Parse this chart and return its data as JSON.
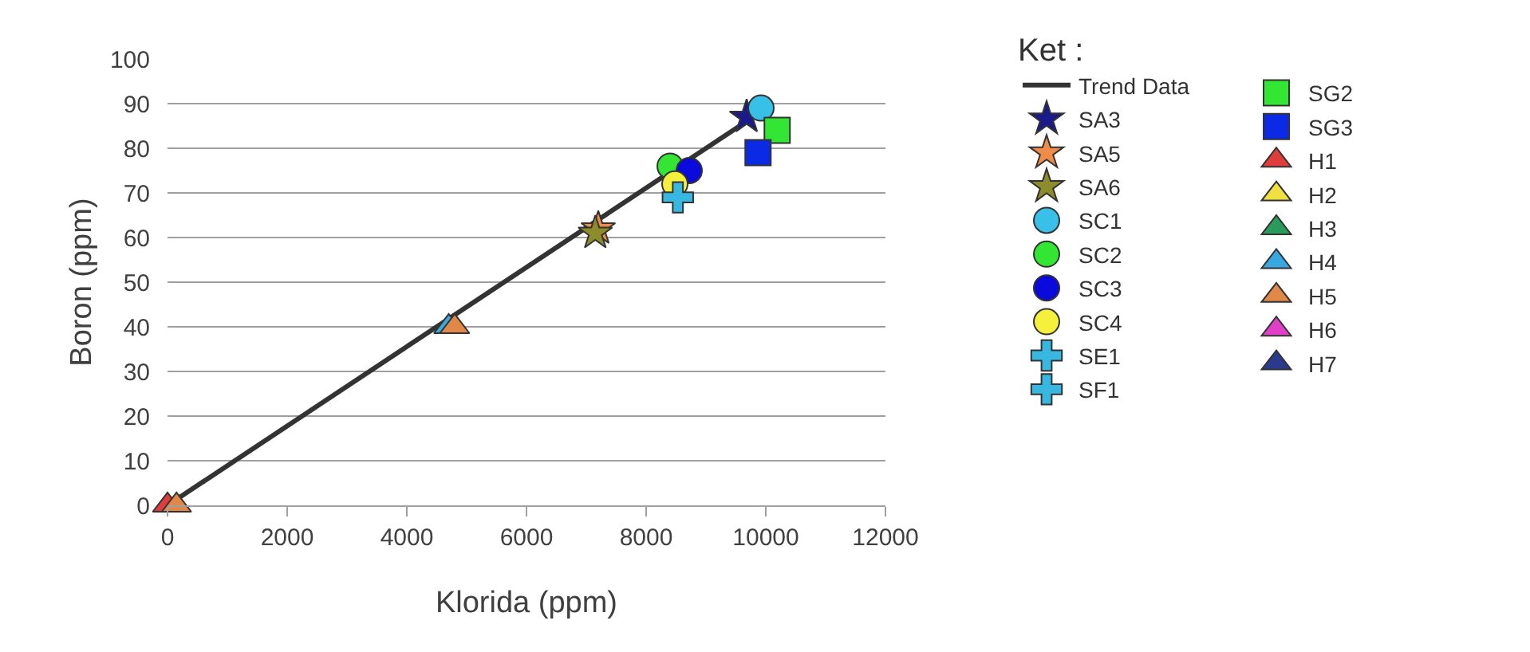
{
  "chart_data": {
    "type": "scatter",
    "xlabel": "Klorida (ppm)",
    "ylabel": "Boron (ppm)",
    "legend_title": "Ket :",
    "legend": "right",
    "grid": "y",
    "xlim": [
      0,
      12000
    ],
    "xticks": [
      0,
      2000,
      4000,
      6000,
      8000,
      10000,
      12000
    ],
    "ylim": [
      0,
      100
    ],
    "yticks": [
      0,
      10,
      20,
      30,
      40,
      50,
      60,
      70,
      80,
      90,
      100
    ],
    "series": [
      {
        "name": "Trend Data",
        "type": "line",
        "color": "#333333",
        "marker": "none",
        "line_style": "solid",
        "x": [
          0,
          9900
        ],
        "values": [
          0,
          88
        ]
      },
      {
        "name": "SA3",
        "color": "#1a1a8c",
        "marker": "star",
        "x": [
          9680
        ],
        "values": [
          87
        ]
      },
      {
        "name": "SA5",
        "color": "#f08c4a",
        "marker": "star",
        "x": [
          7200
        ],
        "values": [
          62
        ]
      },
      {
        "name": "SA6",
        "color": "#8c8c2a",
        "marker": "star",
        "x": [
          7150
        ],
        "values": [
          61
        ]
      },
      {
        "name": "SC1",
        "color": "#38c0e8",
        "marker": "circle",
        "x": [
          9920
        ],
        "values": [
          89
        ]
      },
      {
        "name": "SC2",
        "color": "#33e633",
        "marker": "circle",
        "x": [
          8400
        ],
        "values": [
          76
        ]
      },
      {
        "name": "SC3",
        "color": "#0a0adc",
        "marker": "circle",
        "x": [
          8720
        ],
        "values": [
          75
        ]
      },
      {
        "name": "SC4",
        "color": "#f5f03c",
        "marker": "circle",
        "x": [
          8480
        ],
        "values": [
          72
        ]
      },
      {
        "name": "SE1",
        "color": "#38b8e0",
        "marker": "cross",
        "x": [
          8530
        ],
        "values": [
          69
        ]
      },
      {
        "name": "SF1",
        "color": "#38b8e0",
        "marker": "cross",
        "x": [
          null
        ],
        "values": [
          null
        ]
      },
      {
        "name": "SG2",
        "color": "#33e633",
        "marker": "square",
        "x": [
          10190
        ],
        "values": [
          84
        ]
      },
      {
        "name": "SG3",
        "color": "#0a2ae6",
        "marker": "square",
        "x": [
          9870
        ],
        "values": [
          79
        ]
      },
      {
        "name": "H1",
        "color": "#e03c3c",
        "marker": "triangle",
        "x": [
          0
        ],
        "values": [
          0
        ]
      },
      {
        "name": "H2",
        "color": "#f0e040",
        "marker": "triangle",
        "x": [
          null
        ],
        "values": [
          null
        ]
      },
      {
        "name": "H3",
        "color": "#2a9a5a",
        "marker": "triangle",
        "x": [
          null
        ],
        "values": [
          null
        ]
      },
      {
        "name": "H4",
        "color": "#38a8e0",
        "marker": "triangle",
        "x": [
          4700
        ],
        "values": [
          40
        ]
      },
      {
        "name": "H5",
        "color": "#e08848",
        "marker": "triangle",
        "x": [
          150,
          4800
        ],
        "values": [
          0,
          40
        ]
      },
      {
        "name": "H6",
        "color": "#e040c8",
        "marker": "triangle",
        "x": [
          null
        ],
        "values": [
          null
        ]
      },
      {
        "name": "H7",
        "color": "#2a3a8c",
        "marker": "triangle",
        "x": [
          null
        ],
        "values": [
          null
        ]
      }
    ]
  }
}
